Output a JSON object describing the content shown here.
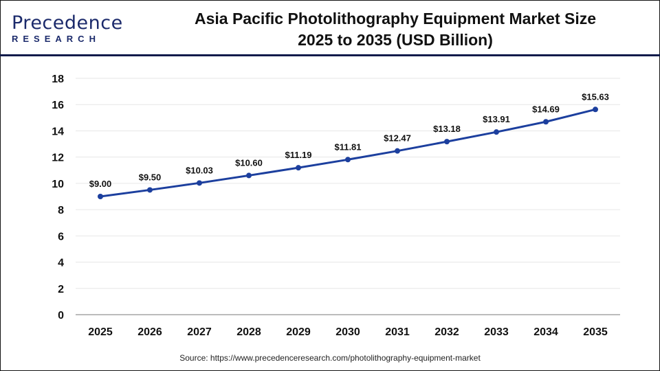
{
  "logo": {
    "text_main": "Precedence",
    "text_sub": "RESEARCH"
  },
  "header": {
    "title_line1": "Asia Pacific Photolithography Equipment Market Size",
    "title_line2": "2025 to 2035 (USD Billion)"
  },
  "source": "Source: https://www.precedenceresearch.com/photolithography-equipment-market",
  "colors": {
    "line": "#1c3f9e",
    "grid": "#e6e6e6",
    "axis": "#bbbbbb",
    "divider": "#0d1a4a"
  },
  "chart_data": {
    "type": "line",
    "title": "Asia Pacific Photolithography Equipment Market Size 2025 to 2035 (USD Billion)",
    "categories": [
      "2025",
      "2026",
      "2027",
      "2028",
      "2029",
      "2030",
      "2031",
      "2032",
      "2033",
      "2034",
      "2035"
    ],
    "values": [
      9.0,
      9.5,
      10.03,
      10.6,
      11.19,
      11.81,
      12.47,
      13.18,
      13.91,
      14.69,
      15.63
    ],
    "data_labels": [
      "$9.00",
      "$9.50",
      "$10.03",
      "$10.60",
      "$11.19",
      "$11.81",
      "$12.47",
      "$13.18",
      "$13.91",
      "$14.69",
      "$15.63"
    ],
    "yticks": [
      0,
      2,
      4,
      6,
      8,
      10,
      12,
      14,
      16,
      18
    ],
    "ylim": [
      0,
      18
    ],
    "grid": true,
    "markers": true
  }
}
